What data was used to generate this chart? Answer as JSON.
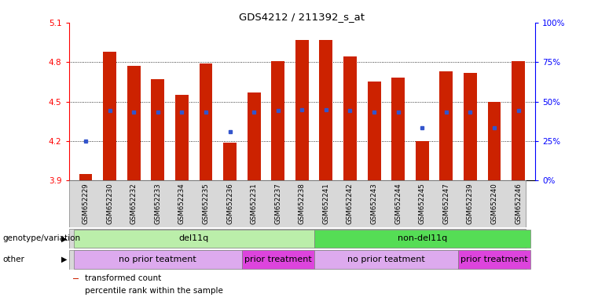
{
  "title": "GDS4212 / 211392_s_at",
  "samples": [
    "GSM652229",
    "GSM652230",
    "GSM652232",
    "GSM652233",
    "GSM652234",
    "GSM652235",
    "GSM652236",
    "GSM652231",
    "GSM652237",
    "GSM652238",
    "GSM652241",
    "GSM652242",
    "GSM652243",
    "GSM652244",
    "GSM652245",
    "GSM652247",
    "GSM652239",
    "GSM652240",
    "GSM652246"
  ],
  "bar_heights": [
    3.95,
    4.88,
    4.77,
    4.67,
    4.55,
    4.79,
    4.19,
    4.57,
    4.81,
    4.97,
    4.97,
    4.84,
    4.65,
    4.68,
    4.2,
    4.73,
    4.72,
    4.5,
    4.81
  ],
  "blue_dots": [
    4.2,
    4.43,
    4.42,
    4.42,
    4.42,
    4.42,
    4.27,
    4.42,
    4.43,
    4.44,
    4.44,
    4.43,
    4.42,
    4.42,
    4.3,
    4.42,
    4.42,
    4.3,
    4.43
  ],
  "ylim_left": [
    3.9,
    5.1
  ],
  "ylim_right": [
    0,
    100
  ],
  "yticks_left": [
    3.9,
    4.2,
    4.5,
    4.8,
    5.1
  ],
  "yticks_right": [
    0,
    25,
    50,
    75,
    100
  ],
  "bar_color": "#cc2200",
  "dot_color": "#3355cc",
  "genotype_groups": [
    {
      "label": "del11q",
      "start": 0,
      "end": 10,
      "color": "#bbeeaa"
    },
    {
      "label": "non-del11q",
      "start": 10,
      "end": 19,
      "color": "#55dd55"
    }
  ],
  "treatment_groups": [
    {
      "label": "no prior teatment",
      "start": 0,
      "end": 7,
      "color": "#ddaaee"
    },
    {
      "label": "prior treatment",
      "start": 7,
      "end": 10,
      "color": "#dd44dd"
    },
    {
      "label": "no prior teatment",
      "start": 10,
      "end": 16,
      "color": "#ddaaee"
    },
    {
      "label": "prior treatment",
      "start": 16,
      "end": 19,
      "color": "#dd44dd"
    }
  ],
  "legend_items": [
    {
      "label": "transformed count",
      "color": "#cc2200"
    },
    {
      "label": "percentile rank within the sample",
      "color": "#3355cc"
    }
  ],
  "bg_color": "white",
  "label_row1": "genotype/variation",
  "label_row2": "other"
}
